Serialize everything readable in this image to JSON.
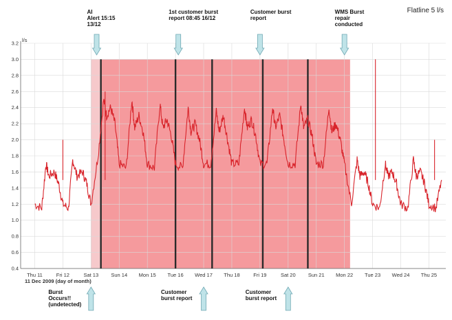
{
  "chart_data": {
    "type": "line",
    "title": "Flatline 5 l/s",
    "ylabel": "l/s",
    "xlabel": "11 Dec 2009 (day of month)",
    "ylim": [
      0.4,
      3.2
    ],
    "y_ticks": [
      "0.4",
      "0.6",
      "0.8",
      "1.0",
      "1.2",
      "1.4",
      "1.6",
      "1.8",
      "2.0",
      "2.2",
      "2.4",
      "2.6",
      "2.8",
      "3.0",
      "3.2"
    ],
    "x_ticks": [
      "Thu 11",
      "Fri 12",
      "Sat 13",
      "Sun 14",
      "Mon 15",
      "Tue 16",
      "Wed 17",
      "Thu 18",
      "Fri 19",
      "Sat 20",
      "Sun 21",
      "Mon 22",
      "Tue 23",
      "Wed 24",
      "Thu 25"
    ],
    "grid": true,
    "series": [
      {
        "color": "#d8232a",
        "x": [
          11.0,
          11.25,
          11.4,
          11.5,
          11.7,
          11.85,
          12.0,
          12.2,
          12.35,
          12.5,
          12.7,
          12.85,
          13.0,
          13.25,
          13.45,
          13.55,
          13.7,
          13.85,
          14.0,
          14.25,
          14.45,
          14.55,
          14.7,
          14.85,
          15.0,
          15.25,
          15.45,
          15.55,
          15.7,
          15.85,
          16.0,
          16.25,
          16.45,
          16.55,
          16.7,
          16.85,
          17.0,
          17.25,
          17.45,
          17.55,
          17.7,
          17.85,
          18.0,
          18.25,
          18.45,
          18.55,
          18.7,
          18.85,
          19.0,
          19.25,
          19.45,
          19.55,
          19.7,
          19.85,
          20.0,
          20.25,
          20.45,
          20.55,
          20.7,
          20.85,
          21.0,
          21.25,
          21.45,
          21.55,
          21.7,
          21.85,
          22.0,
          22.25,
          22.45,
          22.55,
          22.7,
          22.85,
          23.0,
          23.25,
          23.45,
          23.55,
          23.7,
          23.85,
          24.0,
          24.25,
          24.45,
          24.55,
          24.7,
          24.85,
          25.0,
          25.25,
          25.45
        ],
        "y": [
          1.2,
          1.15,
          1.7,
          1.55,
          1.6,
          1.45,
          1.2,
          1.15,
          1.75,
          1.55,
          1.6,
          1.45,
          1.2,
          1.8,
          2.5,
          2.3,
          2.4,
          2.2,
          1.7,
          1.65,
          2.5,
          2.15,
          2.3,
          2.1,
          1.7,
          1.65,
          2.45,
          2.15,
          2.25,
          2.05,
          1.7,
          1.65,
          2.4,
          2.1,
          2.2,
          2.0,
          1.7,
          1.7,
          2.35,
          2.1,
          2.3,
          2.0,
          1.7,
          1.7,
          2.4,
          2.15,
          2.25,
          2.05,
          1.7,
          1.7,
          2.4,
          2.15,
          2.3,
          2.0,
          1.7,
          1.7,
          2.45,
          2.15,
          2.25,
          2.05,
          1.7,
          1.7,
          2.4,
          2.1,
          2.2,
          2.0,
          1.7,
          1.2,
          1.75,
          1.55,
          1.6,
          1.45,
          1.2,
          1.15,
          1.7,
          1.55,
          1.6,
          1.45,
          1.2,
          1.15,
          1.75,
          1.55,
          1.6,
          1.45,
          1.2,
          1.15,
          1.5
        ]
      }
    ],
    "spikes": [
      {
        "x": 12.0,
        "y": 2.0
      },
      {
        "x": 13.5,
        "y": 2.6
      },
      {
        "x": 23.1,
        "y": 3.0
      },
      {
        "x": 25.2,
        "y": 2.0
      }
    ],
    "shaded_regions": [
      {
        "x0": 13.0,
        "x1": 13.35,
        "color": "#f6c9cb"
      },
      {
        "x0": 13.35,
        "x1": 22.2,
        "color": "#f59a9d"
      }
    ],
    "event_lines": [
      13.35,
      16.0,
      17.3,
      19.1,
      20.7
    ],
    "top_annotations": [
      {
        "lines": [
          "AI",
          "Alert 15:15",
          "13/12"
        ],
        "x": 13.2
      },
      {
        "lines": [
          "1st customer burst",
          "report 08:45 16/12"
        ],
        "x": 16.1
      },
      {
        "lines": [
          "Customer burst",
          "report"
        ],
        "x": 19.0
      },
      {
        "lines": [
          "WMS Burst",
          "repair",
          "conducted"
        ],
        "x": 22.0
      }
    ],
    "bottom_annotations": [
      {
        "lines": [
          "Burst",
          "Occurs!!",
          "(undetected)"
        ],
        "x": 13.0
      },
      {
        "lines": [
          "Customer",
          "burst report"
        ],
        "x": 17.0
      },
      {
        "lines": [
          "Customer",
          "burst report"
        ],
        "x": 20.0
      }
    ]
  }
}
